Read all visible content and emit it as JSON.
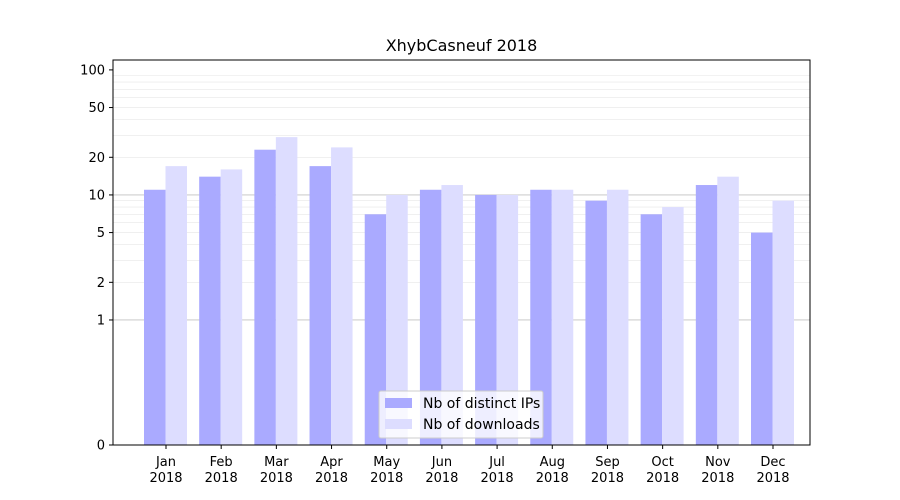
{
  "chart_data": {
    "type": "bar",
    "title": "XhybCasneuf 2018",
    "xlabel": "",
    "ylabel": "",
    "y_scale": "symlog",
    "ylim": [
      0,
      120
    ],
    "y_ticks": [
      0,
      1,
      2,
      5,
      10,
      20,
      50,
      100
    ],
    "y_tick_labels": [
      "0",
      "1",
      "2",
      "5",
      "10",
      "20",
      "50",
      "100"
    ],
    "grid": true,
    "legend_position": "bottom-center",
    "categories": [
      "Jan\n2018",
      "Feb\n2018",
      "Mar\n2018",
      "Apr\n2018",
      "May\n2018",
      "Jun\n2018",
      "Jul\n2018",
      "Aug\n2018",
      "Sep\n2018",
      "Oct\n2018",
      "Nov\n2018",
      "Dec\n2018"
    ],
    "category_lines": [
      [
        "Jan",
        "2018"
      ],
      [
        "Feb",
        "2018"
      ],
      [
        "Mar",
        "2018"
      ],
      [
        "Apr",
        "2018"
      ],
      [
        "May",
        "2018"
      ],
      [
        "Jun",
        "2018"
      ],
      [
        "Jul",
        "2018"
      ],
      [
        "Aug",
        "2018"
      ],
      [
        "Sep",
        "2018"
      ],
      [
        "Oct",
        "2018"
      ],
      [
        "Nov",
        "2018"
      ],
      [
        "Dec",
        "2018"
      ]
    ],
    "series": [
      {
        "name": "Nb of distinct IPs",
        "color": "#aaaaff",
        "values": [
          11,
          14,
          23,
          17,
          7,
          11,
          10,
          11,
          9,
          7,
          12,
          5
        ]
      },
      {
        "name": "Nb of downloads",
        "color": "#ddddff",
        "values": [
          17,
          16,
          29,
          24,
          10,
          12,
          10,
          11,
          11,
          8,
          14,
          9
        ]
      }
    ]
  }
}
